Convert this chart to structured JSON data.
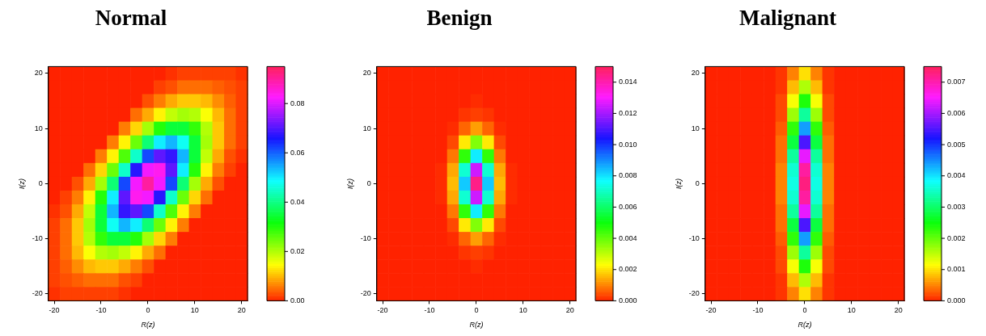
{
  "chart_data": [
    {
      "type": "heatmap",
      "title": "Normal",
      "xlabel": "R(z)",
      "ylabel": "I(z)",
      "categories": [
        "-20",
        null,
        null,
        null,
        "-10",
        null,
        null,
        null,
        "0",
        null,
        null,
        null,
        "10",
        null,
        null,
        null,
        "20"
      ],
      "y_categories": [
        "20",
        null,
        null,
        null,
        "10",
        null,
        null,
        null,
        "0",
        null,
        null,
        null,
        "-10",
        null,
        null,
        null,
        "-20"
      ],
      "clim": [
        0,
        0.095
      ],
      "cticks": [
        {
          "value": 0,
          "label": "0.00"
        },
        {
          "value": 0.02,
          "label": "0.02"
        },
        {
          "value": 0.04,
          "label": "0.04"
        },
        {
          "value": 0.06,
          "label": "0.06"
        },
        {
          "value": 0.08,
          "label": "0.08"
        }
      ],
      "cells": [
        [
          0,
          0,
          0,
          0,
          0,
          0,
          0,
          0,
          0,
          0,
          0.001,
          0.002,
          0.002,
          0.002,
          0.002,
          0.002,
          0.001
        ],
        [
          0,
          0,
          0,
          0,
          0,
          0,
          0,
          0,
          0,
          0.002,
          0.003,
          0.005,
          0.005,
          0.005,
          0.004,
          0.003,
          0.002
        ],
        [
          0,
          0,
          0,
          0,
          0,
          0,
          0,
          0,
          0.003,
          0.006,
          0.009,
          0.011,
          0.011,
          0.01,
          0.007,
          0.004,
          0.002
        ],
        [
          0,
          0,
          0,
          0,
          0,
          0,
          0,
          0.005,
          0.009,
          0.014,
          0.019,
          0.021,
          0.02,
          0.015,
          0.01,
          0.005,
          0.002
        ],
        [
          0,
          0,
          0,
          0,
          0,
          0,
          0.006,
          0.012,
          0.021,
          0.03,
          0.035,
          0.035,
          0.029,
          0.02,
          0.011,
          0.005,
          0.002
        ],
        [
          0,
          0,
          0,
          0,
          0,
          0.006,
          0.014,
          0.025,
          0.039,
          0.05,
          0.054,
          0.048,
          0.035,
          0.021,
          0.011,
          0.005,
          0.002
        ],
        [
          0,
          0,
          0,
          0,
          0.006,
          0.014,
          0.027,
          0.045,
          0.062,
          0.071,
          0.068,
          0.054,
          0.035,
          0.019,
          0.009,
          0.003,
          0.001
        ],
        [
          0,
          0,
          0,
          0.005,
          0.012,
          0.025,
          0.045,
          0.067,
          0.082,
          0.084,
          0.071,
          0.05,
          0.03,
          0.014,
          0.006,
          0.002,
          0
        ],
        [
          0,
          0,
          0.003,
          0.009,
          0.021,
          0.039,
          0.062,
          0.082,
          0.09,
          0.082,
          0.062,
          0.039,
          0.021,
          0.009,
          0.003,
          0,
          0
        ],
        [
          0,
          0.002,
          0.006,
          0.014,
          0.03,
          0.05,
          0.071,
          0.084,
          0.082,
          0.067,
          0.045,
          0.025,
          0.012,
          0.005,
          0,
          0,
          0
        ],
        [
          0.001,
          0.003,
          0.009,
          0.019,
          0.035,
          0.054,
          0.068,
          0.071,
          0.062,
          0.045,
          0.027,
          0.014,
          0.006,
          0,
          0,
          0,
          0
        ],
        [
          0.002,
          0.005,
          0.011,
          0.021,
          0.035,
          0.048,
          0.054,
          0.05,
          0.039,
          0.025,
          0.014,
          0.006,
          0,
          0,
          0,
          0,
          0
        ],
        [
          0.002,
          0.005,
          0.011,
          0.02,
          0.029,
          0.035,
          0.035,
          0.03,
          0.021,
          0.012,
          0.006,
          0,
          0,
          0,
          0,
          0,
          0
        ],
        [
          0.002,
          0.005,
          0.01,
          0.015,
          0.02,
          0.021,
          0.019,
          0.014,
          0.009,
          0.005,
          0,
          0,
          0,
          0,
          0,
          0,
          0
        ],
        [
          0.002,
          0.004,
          0.007,
          0.01,
          0.011,
          0.011,
          0.009,
          0.006,
          0.003,
          0,
          0,
          0,
          0,
          0,
          0,
          0,
          0
        ],
        [
          0.002,
          0.003,
          0.004,
          0.005,
          0.005,
          0.005,
          0.003,
          0.002,
          0,
          0,
          0,
          0,
          0,
          0,
          0,
          0,
          0
        ],
        [
          0.001,
          0.002,
          0.002,
          0.002,
          0.002,
          0.002,
          0.001,
          0,
          0,
          0,
          0,
          0,
          0,
          0,
          0,
          0,
          0
        ]
      ]
    },
    {
      "type": "heatmap",
      "title": "Benign",
      "xlabel": "R(z)",
      "ylabel": "I(z)",
      "categories": [
        "-20",
        null,
        null,
        null,
        "-10",
        null,
        null,
        null,
        "0",
        null,
        null,
        null,
        "10",
        null,
        null,
        null,
        "20"
      ],
      "y_categories": [
        "20",
        null,
        null,
        null,
        "10",
        null,
        null,
        null,
        "0",
        null,
        null,
        null,
        "-10",
        null,
        null,
        null,
        "-20"
      ],
      "clim": [
        0,
        0.015
      ],
      "cticks": [
        {
          "value": 0,
          "label": "0.000"
        },
        {
          "value": 0.002,
          "label": "0.002"
        },
        {
          "value": 0.004,
          "label": "0.004"
        },
        {
          "value": 0.006,
          "label": "0.006"
        },
        {
          "value": 0.008,
          "label": "0.008"
        },
        {
          "value": 0.01,
          "label": "0.010"
        },
        {
          "value": 0.012,
          "label": "0.012"
        },
        {
          "value": 0.014,
          "label": "0.014"
        }
      ],
      "cells": [
        [
          0,
          0,
          0,
          0,
          0,
          0,
          0,
          0,
          0,
          0,
          0,
          0,
          0,
          0,
          0,
          0,
          0
        ],
        [
          0,
          0,
          0,
          0,
          0,
          0,
          0,
          0,
          0,
          0,
          0,
          0,
          0,
          0,
          0,
          0,
          0
        ],
        [
          0,
          0,
          0,
          0,
          0,
          0,
          0,
          0,
          0.0001,
          0,
          0,
          0,
          0,
          0,
          0,
          0,
          0
        ],
        [
          0,
          0,
          0,
          0,
          0,
          0,
          0,
          0.0002,
          0.0003,
          0.0002,
          0,
          0,
          0,
          0,
          0,
          0,
          0
        ],
        [
          0,
          0,
          0,
          0,
          0,
          0,
          0.0001,
          0.0007,
          0.0013,
          0.0007,
          0.0001,
          0,
          0,
          0,
          0,
          0,
          0
        ],
        [
          0,
          0,
          0,
          0,
          0,
          0,
          0.0004,
          0.0021,
          0.0037,
          0.0021,
          0.0004,
          0,
          0,
          0,
          0,
          0,
          0
        ],
        [
          0,
          0,
          0,
          0,
          0,
          0,
          0.0009,
          0.0046,
          0.0079,
          0.0046,
          0.0009,
          0,
          0,
          0,
          0,
          0,
          0
        ],
        [
          0,
          0,
          0,
          0,
          0,
          0.0001,
          0.0014,
          0.0072,
          0.0125,
          0.0072,
          0.0014,
          0.0001,
          0,
          0,
          0,
          0,
          0
        ],
        [
          0,
          0,
          0,
          0,
          0,
          0.0001,
          0.0016,
          0.0083,
          0.0145,
          0.0083,
          0.0016,
          0.0001,
          0,
          0,
          0,
          0,
          0
        ],
        [
          0,
          0,
          0,
          0,
          0,
          0.0001,
          0.0014,
          0.0072,
          0.0125,
          0.0072,
          0.0014,
          0.0001,
          0,
          0,
          0,
          0,
          0
        ],
        [
          0,
          0,
          0,
          0,
          0,
          0,
          0.0009,
          0.0046,
          0.0079,
          0.0046,
          0.0009,
          0,
          0,
          0,
          0,
          0,
          0
        ],
        [
          0,
          0,
          0,
          0,
          0,
          0,
          0.0004,
          0.0021,
          0.0037,
          0.0021,
          0.0004,
          0,
          0,
          0,
          0,
          0,
          0
        ],
        [
          0,
          0,
          0,
          0,
          0,
          0,
          0.0001,
          0.0007,
          0.0013,
          0.0007,
          0.0001,
          0,
          0,
          0,
          0,
          0,
          0
        ],
        [
          0,
          0,
          0,
          0,
          0,
          0,
          0,
          0.0002,
          0.0003,
          0.0002,
          0,
          0,
          0,
          0,
          0,
          0,
          0
        ],
        [
          0,
          0,
          0,
          0,
          0,
          0,
          0,
          0,
          0.0001,
          0,
          0,
          0,
          0,
          0,
          0,
          0,
          0
        ],
        [
          0,
          0,
          0,
          0,
          0,
          0,
          0,
          0,
          0,
          0,
          0,
          0,
          0,
          0,
          0,
          0,
          0
        ],
        [
          0,
          0,
          0,
          0,
          0,
          0,
          0,
          0,
          0,
          0,
          0,
          0,
          0,
          0,
          0,
          0,
          0
        ]
      ]
    },
    {
      "type": "heatmap",
      "title": "Malignant",
      "xlabel": "R(z)",
      "ylabel": "I(z)",
      "categories": [
        "-20",
        null,
        null,
        null,
        "-10",
        null,
        null,
        null,
        "0",
        null,
        null,
        null,
        "10",
        null,
        null,
        null,
        "20"
      ],
      "y_categories": [
        "20",
        null,
        null,
        null,
        "10",
        null,
        null,
        null,
        "0",
        null,
        null,
        null,
        "-10",
        null,
        null,
        null,
        "-20"
      ],
      "clim": [
        0,
        0.0075
      ],
      "cticks": [
        {
          "value": 0,
          "label": "0.000"
        },
        {
          "value": 0.001,
          "label": "0.001"
        },
        {
          "value": 0.002,
          "label": "0.002"
        },
        {
          "value": 0.003,
          "label": "0.003"
        },
        {
          "value": 0.004,
          "label": "0.004"
        },
        {
          "value": 0.005,
          "label": "0.005"
        },
        {
          "value": 0.006,
          "label": "0.006"
        },
        {
          "value": 0.007,
          "label": "0.007"
        }
      ],
      "cells": [
        [
          0,
          0,
          0,
          0,
          0,
          0,
          0.0001,
          0.0005,
          0.001,
          0.0005,
          0.0001,
          0,
          0,
          0,
          0,
          0,
          0
        ],
        [
          0,
          0,
          0,
          0,
          0,
          0,
          0.0001,
          0.0008,
          0.0016,
          0.0008,
          0.0001,
          0,
          0,
          0,
          0,
          0,
          0
        ],
        [
          0,
          0,
          0,
          0,
          0,
          0,
          0.0002,
          0.0012,
          0.0024,
          0.0012,
          0.0002,
          0,
          0,
          0,
          0,
          0,
          0
        ],
        [
          0,
          0,
          0,
          0,
          0,
          0,
          0.0002,
          0.0017,
          0.0033,
          0.0017,
          0.0002,
          0,
          0,
          0,
          0,
          0,
          0
        ],
        [
          0,
          0,
          0,
          0,
          0,
          0,
          0.0003,
          0.0023,
          0.0044,
          0.0023,
          0.0003,
          0,
          0,
          0,
          0,
          0,
          0
        ],
        [
          0,
          0,
          0,
          0,
          0,
          0,
          0.0004,
          0.0028,
          0.0055,
          0.0028,
          0.0004,
          0,
          0,
          0,
          0,
          0,
          0
        ],
        [
          0,
          0,
          0,
          0,
          0,
          0,
          0.0004,
          0.0033,
          0.0064,
          0.0033,
          0.0004,
          0,
          0,
          0,
          0,
          0,
          0
        ],
        [
          0,
          0,
          0,
          0,
          0,
          0,
          0.0005,
          0.0036,
          0.0071,
          0.0036,
          0.0005,
          0,
          0,
          0,
          0,
          0,
          0
        ],
        [
          0,
          0,
          0,
          0,
          0,
          0,
          0.0005,
          0.0037,
          0.0073,
          0.0037,
          0.0005,
          0,
          0,
          0,
          0,
          0,
          0
        ],
        [
          0,
          0,
          0,
          0,
          0,
          0,
          0.0005,
          0.0036,
          0.0071,
          0.0036,
          0.0005,
          0,
          0,
          0,
          0,
          0,
          0
        ],
        [
          0,
          0,
          0,
          0,
          0,
          0,
          0.0004,
          0.0033,
          0.0064,
          0.0033,
          0.0004,
          0,
          0,
          0,
          0,
          0,
          0
        ],
        [
          0,
          0,
          0,
          0,
          0,
          0,
          0.0004,
          0.0028,
          0.0055,
          0.0028,
          0.0004,
          0,
          0,
          0,
          0,
          0,
          0
        ],
        [
          0,
          0,
          0,
          0,
          0,
          0,
          0.0003,
          0.0023,
          0.0044,
          0.0023,
          0.0003,
          0,
          0,
          0,
          0,
          0,
          0
        ],
        [
          0,
          0,
          0,
          0,
          0,
          0,
          0.0002,
          0.0017,
          0.0033,
          0.0017,
          0.0002,
          0,
          0,
          0,
          0,
          0,
          0
        ],
        [
          0,
          0,
          0,
          0,
          0,
          0,
          0.0002,
          0.0012,
          0.0024,
          0.0012,
          0.0002,
          0,
          0,
          0,
          0,
          0,
          0
        ],
        [
          0,
          0,
          0,
          0,
          0,
          0,
          0.0001,
          0.0008,
          0.0016,
          0.0008,
          0.0001,
          0,
          0,
          0,
          0,
          0,
          0
        ],
        [
          0,
          0,
          0,
          0,
          0,
          0,
          0.0001,
          0.0005,
          0.001,
          0.0005,
          0.0001,
          0,
          0,
          0,
          0,
          0,
          0
        ]
      ]
    }
  ]
}
